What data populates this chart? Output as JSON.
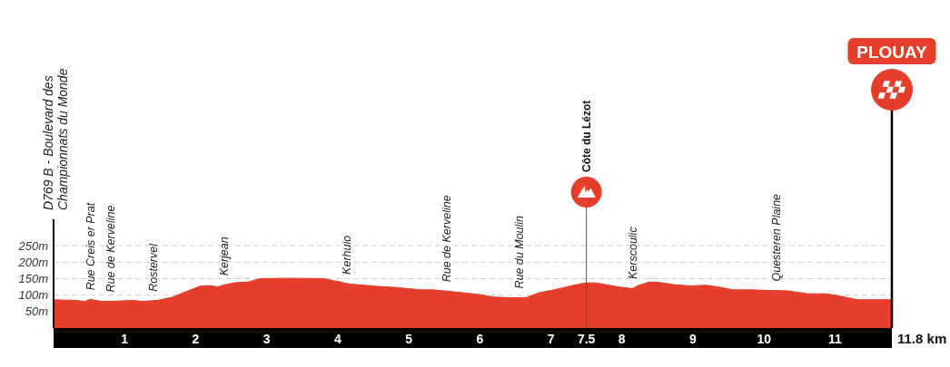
{
  "chart_data": {
    "type": "area",
    "x": [
      0,
      0.3,
      0.44,
      0.52,
      0.67,
      0.9,
      1.12,
      1.25,
      1.46,
      1.68,
      1.8,
      1.93,
      2.06,
      2.18,
      2.31,
      2.4,
      2.57,
      2.74,
      2.91,
      3.29,
      3.8,
      3.96,
      4.15,
      4.53,
      4.83,
      5.17,
      5.34,
      5.68,
      6.02,
      6.19,
      6.45,
      6.66,
      6.83,
      7.09,
      7.3,
      7.49,
      7.64,
      7.94,
      8.15,
      8.24,
      8.39,
      8.54,
      8.75,
      8.97,
      9.18,
      9.35,
      9.56,
      9.82,
      10.07,
      10.33,
      10.62,
      10.88,
      11.09,
      11.32,
      11.8
    ],
    "values": [
      86,
      84,
      81,
      87,
      81,
      82,
      84,
      81,
      84,
      94,
      105,
      116,
      127,
      129,
      125,
      131,
      138,
      140,
      150,
      151,
      150,
      143,
      134,
      127,
      123,
      116,
      116,
      109,
      101,
      94,
      92,
      93,
      107,
      118,
      129,
      137,
      137,
      125,
      120,
      130,
      140,
      138,
      131,
      128,
      130,
      125,
      116,
      116,
      114,
      113,
      104,
      104,
      96,
      86,
      86
    ],
    "color": "#e53e2a",
    "xlim": [
      0,
      11.8
    ],
    "xticks": [
      1,
      2,
      3,
      4,
      5,
      6,
      7,
      7.5,
      8,
      9,
      10,
      11
    ],
    "ylim": [
      0,
      330
    ],
    "yticks": [
      {
        "value": 50,
        "label": "50m"
      },
      {
        "value": 100,
        "label": "100m"
      },
      {
        "value": 150,
        "label": "150m"
      },
      {
        "value": 200,
        "label": "200m"
      },
      {
        "value": 250,
        "label": "250m"
      }
    ],
    "grid": "y",
    "annotations": [
      "D769 B - Boulevard des\nChampionnats du Monde",
      {
        "text": "Rue Creis er Prat",
        "x": 0.52,
        "y": 87
      },
      {
        "text": "Rue de Kerveline",
        "x": 0.8,
        "y": 81
      },
      {
        "text": "Rostervel",
        "x": 1.4,
        "y": 83
      },
      {
        "text": "Kerjean",
        "x": 2.4,
        "y": 131
      },
      {
        "text": "Kerhuio",
        "x": 4.13,
        "y": 135
      },
      {
        "text": "Rue de Kerveline",
        "x": 5.53,
        "y": 112
      },
      {
        "text": "Rue du Moulin",
        "x": 6.56,
        "y": 92
      },
      {
        "text": "Kerscoulic",
        "x": 8.16,
        "y": 121
      },
      {
        "text": "Questeren Plaine",
        "x": 10.18,
        "y": 114
      },
      "11.8 km"
    ],
    "ref_lines": [
      {
        "axis": "x",
        "value": 7.5,
        "label": "Côte du Lézot",
        "color": "#555555"
      },
      {
        "axis": "x",
        "value": 11.8,
        "label": "PLOUAY",
        "color": "#000000"
      }
    ]
  }
}
